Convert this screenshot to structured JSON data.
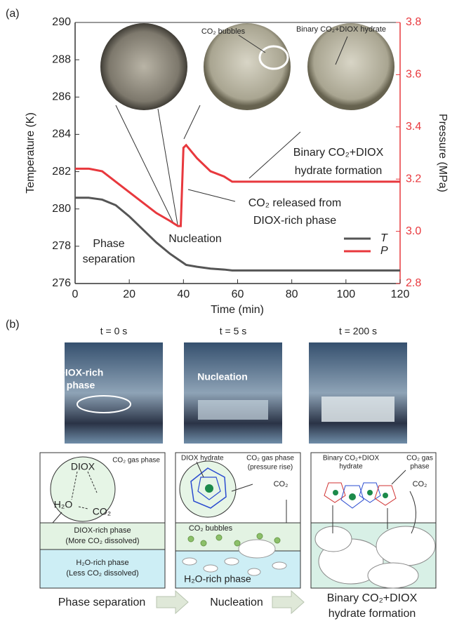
{
  "chart_data": {
    "type": "line",
    "panel_label": "(a)",
    "x_label": "Time (min)",
    "y_label": "Temperature (K)",
    "y2_label": "Pressure (MPa)",
    "x": [
      0,
      5,
      10,
      15,
      20,
      25,
      30,
      35,
      38,
      39,
      40,
      41,
      45,
      50,
      55,
      58,
      60,
      80,
      100,
      120
    ],
    "series": [
      {
        "name": "T",
        "color": "#555555",
        "values": [
          280.6,
          280.6,
          280.5,
          280.2,
          279.6,
          278.9,
          278.2,
          277.6,
          277.3,
          277.2,
          277.1,
          277.0,
          276.9,
          276.8,
          276.75,
          276.7,
          276.7,
          276.7,
          276.7,
          276.7
        ]
      },
      {
        "name": "P",
        "color": "#e8383d",
        "axis": "y2",
        "values": [
          3.24,
          3.24,
          3.23,
          3.19,
          3.15,
          3.11,
          3.07,
          3.04,
          3.02,
          3.02,
          3.32,
          3.33,
          3.28,
          3.23,
          3.21,
          3.19,
          3.19,
          3.19,
          3.19,
          3.19
        ]
      }
    ],
    "xlim": [
      0,
      120
    ],
    "xticks": [
      0,
      20,
      40,
      60,
      80,
      100,
      120
    ],
    "ylim": [
      276,
      290
    ],
    "yticks": [
      276,
      278,
      280,
      282,
      284,
      286,
      288,
      290
    ],
    "y2lim": [
      2.8,
      3.8
    ],
    "y2ticks": [
      2.8,
      {
        "value": 3,
        "label": "3.0"
      },
      3.2,
      3.4,
      3.6,
      3.8
    ],
    "legend": "lower right",
    "annotations": [
      "CO₂ bubbles",
      "Binary CO₂+DIOX hydrate",
      "Binary CO₂+DIOX",
      "hydrate formation",
      "CO₂ released from",
      "DIOX-rich phase",
      "Nucleation",
      "Phase",
      "separation"
    ]
  },
  "panel_b": {
    "label": "(b)",
    "times": [
      "t = 0 s",
      "t = 5 s",
      "t = 200 s"
    ],
    "photo_labels": [
      "DIOX-rich",
      "phase",
      "Nucleation"
    ],
    "diagram_1": [
      "CO₂ gas phase",
      "DIOX",
      "H₂O",
      "CO₂",
      "DIOX-rich phase",
      "(More CO₂ dissolved)",
      "H₂O-rich phase",
      "(Less CO₂ dissolved)"
    ],
    "diagram_2": [
      "DIOX hydrate",
      "CO₂ gas phase",
      "(pressure rise)",
      "CO₂",
      "CO₂ bubbles",
      "H₂O-rich phase"
    ],
    "diagram_3": [
      "Binary CO₂+DIOX",
      "hydrate",
      "CO₂ gas",
      "phase",
      "CO₂"
    ],
    "steps": [
      "Phase separation",
      "Nucleation",
      "Binary CO₂+DIOX",
      "hydrate formation"
    ]
  }
}
